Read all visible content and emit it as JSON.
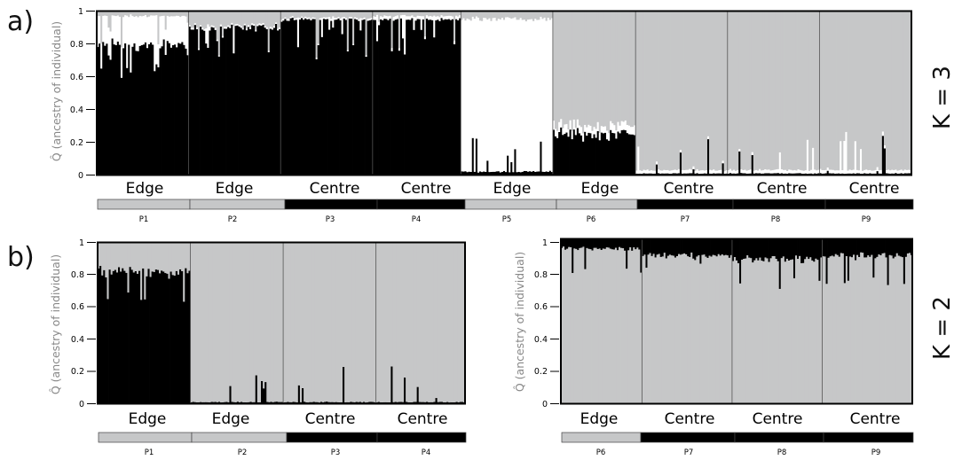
{
  "colors": {
    "black": "#000000",
    "grey": "#c6c7c8",
    "white": "#ffffff"
  },
  "panels": [
    {
      "panel_label": "a)",
      "k_label": "K = 3",
      "ylabel": "Q̂ (ancestry of individual)",
      "yticks": [
        "0",
        "0.2",
        "0.4",
        "0.6",
        "0.8",
        "1"
      ],
      "populations": [
        {
          "name": "P1",
          "region": "Edge",
          "bar_color": "grey"
        },
        {
          "name": "P2",
          "region": "Edge",
          "bar_color": "grey"
        },
        {
          "name": "P3",
          "region": "Centre",
          "bar_color": "black"
        },
        {
          "name": "P4",
          "region": "Centre",
          "bar_color": "black"
        },
        {
          "name": "P5",
          "region": "Edge",
          "bar_color": "grey"
        },
        {
          "name": "P6",
          "region": "Edge",
          "bar_color": "grey"
        },
        {
          "name": "P7",
          "region": "Centre",
          "bar_color": "black"
        },
        {
          "name": "P8",
          "region": "Centre",
          "bar_color": "black"
        },
        {
          "name": "P9",
          "region": "Centre",
          "bar_color": "black"
        }
      ]
    },
    {
      "panel_label": "b)",
      "k_label": "K = 2",
      "ylabel": "Q̂ (ancestry of individual)",
      "yticks": [
        "0",
        "0.2",
        "0.4",
        "0.6",
        "0.8",
        "1"
      ],
      "populations": [
        {
          "name": "P1",
          "region": "Edge",
          "bar_color": "grey"
        },
        {
          "name": "P2",
          "region": "Edge",
          "bar_color": "grey"
        },
        {
          "name": "P3",
          "region": "Centre",
          "bar_color": "black"
        },
        {
          "name": "P4",
          "region": "Centre",
          "bar_color": "black"
        }
      ]
    },
    {
      "panel_label": "",
      "k_label": "K = 2",
      "ylabel": "Q̂ (ancestry of individual)",
      "yticks": [
        "0",
        "0.2",
        "0.4",
        "0.6",
        "0.8",
        "1"
      ],
      "populations": [
        {
          "name": "P6",
          "region": "Edge",
          "bar_color": "grey"
        },
        {
          "name": "P7",
          "region": "Centre",
          "bar_color": "black"
        },
        {
          "name": "P8",
          "region": "Centre",
          "bar_color": "black"
        },
        {
          "name": "P9",
          "region": "Centre",
          "bar_color": "black"
        }
      ]
    }
  ],
  "chart_data": [
    {
      "type": "bar",
      "stacked": true,
      "panel": "a)",
      "k": 3,
      "ylabel": "Q̂ (ancestry of individual)",
      "ylim": [
        0,
        1
      ],
      "grid": false,
      "population_order": [
        "P1",
        "P2",
        "P3",
        "P4",
        "P5",
        "P6",
        "P7",
        "P8",
        "P9"
      ],
      "population_regions": [
        "Edge",
        "Edge",
        "Centre",
        "Centre",
        "Edge",
        "Edge",
        "Centre",
        "Centre",
        "Centre"
      ],
      "approx_individuals": [
        50,
        50,
        50,
        48,
        50,
        45,
        50,
        50,
        50
      ],
      "mean_ancestry": [
        {
          "black": 0.8,
          "white": 0.17,
          "grey": 0.03
        },
        {
          "black": 0.9,
          "white": 0.01,
          "grey": 0.09
        },
        {
          "black": 0.95,
          "white": 0.01,
          "grey": 0.04
        },
        {
          "black": 0.95,
          "white": 0.02,
          "grey": 0.03
        },
        {
          "black": 0.02,
          "white": 0.93,
          "grey": 0.05
        },
        {
          "black": 0.25,
          "white": 0.05,
          "grey": 0.7
        },
        {
          "black": 0.01,
          "white": 0.02,
          "grey": 0.97
        },
        {
          "black": 0.01,
          "white": 0.02,
          "grey": 0.97
        },
        {
          "black": 0.01,
          "white": 0.02,
          "grey": 0.97
        }
      ]
    },
    {
      "type": "bar",
      "stacked": true,
      "panel": "b) left",
      "k": 2,
      "ylabel": "Q̂ (ancestry of individual)",
      "ylim": [
        0,
        1
      ],
      "grid": false,
      "population_order": [
        "P1",
        "P2",
        "P3",
        "P4"
      ],
      "population_regions": [
        "Edge",
        "Edge",
        "Centre",
        "Centre"
      ],
      "approx_individuals": [
        50,
        50,
        50,
        48
      ],
      "mean_ancestry": [
        {
          "black": 0.82,
          "grey": 0.18
        },
        {
          "black": 0.01,
          "grey": 0.99
        },
        {
          "black": 0.01,
          "grey": 0.99
        },
        {
          "black": 0.01,
          "grey": 0.99
        }
      ]
    },
    {
      "type": "bar",
      "stacked": true,
      "panel": "b) right",
      "k": 2,
      "ylabel": "Q̂ (ancestry of individual)",
      "ylim": [
        0,
        1
      ],
      "grid": false,
      "population_order": [
        "P6",
        "P7",
        "P8",
        "P9"
      ],
      "population_regions": [
        "Edge",
        "Centre",
        "Centre",
        "Centre"
      ],
      "approx_individuals": [
        45,
        50,
        50,
        50
      ],
      "mean_ancestry": [
        {
          "black": 0.06,
          "grey": 0.94
        },
        {
          "black": 0.1,
          "grey": 0.9
        },
        {
          "black": 0.12,
          "grey": 0.88
        },
        {
          "black": 0.1,
          "grey": 0.9
        }
      ]
    }
  ]
}
